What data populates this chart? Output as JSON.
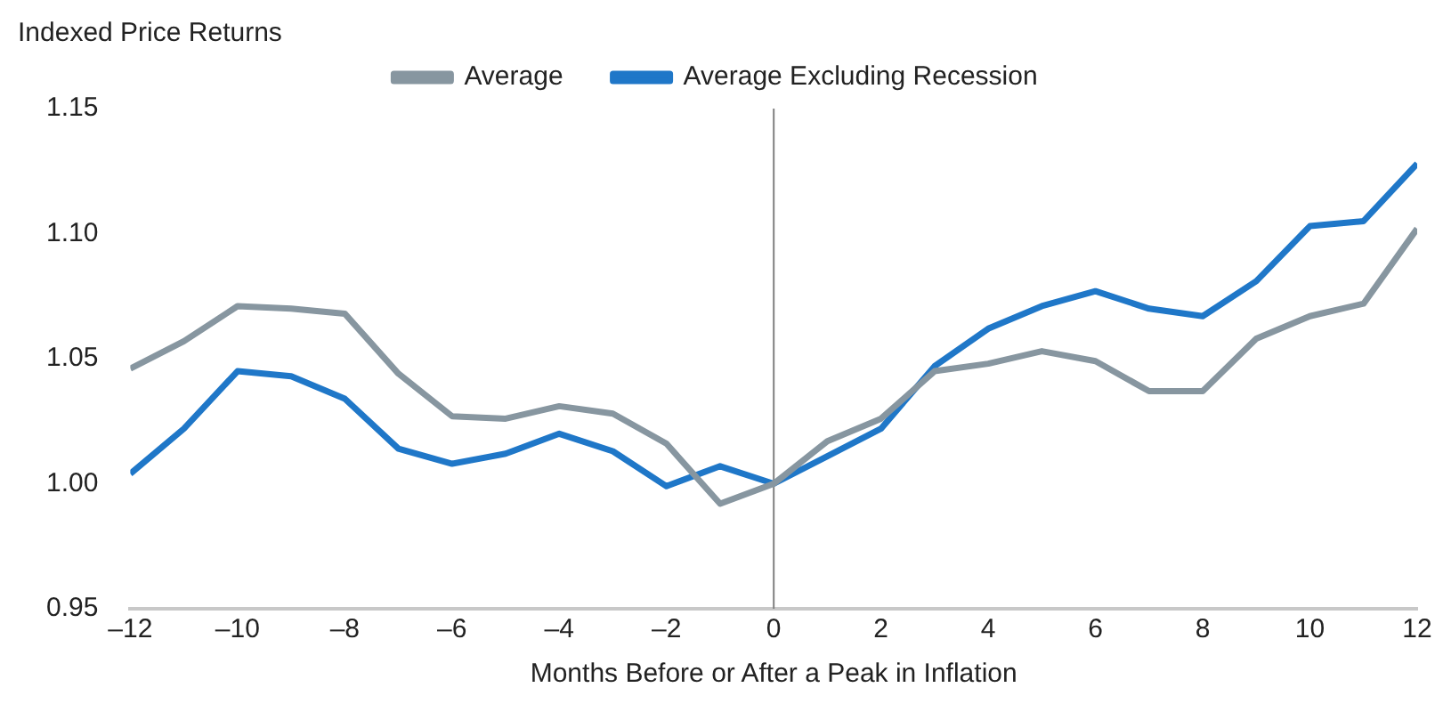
{
  "chart_data": {
    "type": "line",
    "title": "Indexed Price Returns",
    "xlabel": "Months Before or After a Peak in Inflation",
    "x": [
      -12,
      -11,
      -10,
      -9,
      -8,
      -7,
      -6,
      -5,
      -4,
      -3,
      -2,
      -1,
      0,
      1,
      2,
      3,
      4,
      5,
      6,
      7,
      8,
      9,
      10,
      11,
      12
    ],
    "series": [
      {
        "name": "Average",
        "color": "#8796a0",
        "values": [
          1.046,
          1.057,
          1.071,
          1.07,
          1.068,
          1.044,
          1.027,
          1.026,
          1.031,
          1.028,
          1.016,
          0.992,
          1.0,
          1.017,
          1.026,
          1.045,
          1.048,
          1.053,
          1.049,
          1.037,
          1.037,
          1.058,
          1.067,
          1.072,
          1.102
        ]
      },
      {
        "name": "Average Excluding Recession",
        "color": "#1f77c8",
        "values": [
          1.004,
          1.022,
          1.045,
          1.043,
          1.034,
          1.014,
          1.008,
          1.012,
          1.02,
          1.013,
          0.999,
          1.007,
          1.0,
          1.011,
          1.022,
          1.047,
          1.062,
          1.071,
          1.077,
          1.07,
          1.067,
          1.081,
          1.103,
          1.105,
          1.128
        ]
      }
    ],
    "xlim": [
      -12,
      12
    ],
    "xticks": [
      {
        "value": -12,
        "label": "–12"
      },
      {
        "value": -10,
        "label": "–10"
      },
      {
        "value": -8,
        "label": "–8"
      },
      {
        "value": -6,
        "label": "–6"
      },
      {
        "value": -4,
        "label": "–4"
      },
      {
        "value": -2,
        "label": "–2"
      },
      0,
      2,
      4,
      6,
      8,
      10,
      12
    ],
    "ylim": [
      0.95,
      1.15
    ],
    "yticks": [
      {
        "value": 0.95,
        "label": "0.95"
      },
      {
        "value": 1.0,
        "label": "1.00"
      },
      {
        "value": 1.05,
        "label": "1.05"
      },
      {
        "value": 1.1,
        "label": "1.10"
      },
      {
        "value": 1.15,
        "label": "1.15"
      }
    ],
    "ref_lines": [
      {
        "axis": "x",
        "value": 0,
        "color": "#808080"
      }
    ],
    "grid": false,
    "legend": "top",
    "marker": "none",
    "line_style": "solid"
  }
}
